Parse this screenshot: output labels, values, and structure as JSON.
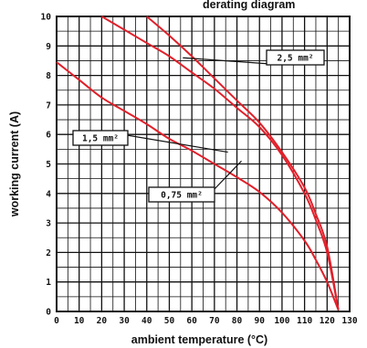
{
  "chart_data": {
    "type": "line",
    "title": "derating diagram",
    "xlabel": "ambient temperature (°C)",
    "ylabel": "working current (A)",
    "xlim": [
      0,
      130
    ],
    "ylim": [
      0,
      10
    ],
    "x_ticks": [
      0,
      10,
      20,
      30,
      40,
      50,
      60,
      70,
      80,
      90,
      100,
      110,
      120,
      130
    ],
    "y_ticks": [
      0,
      1,
      2,
      3,
      4,
      5,
      6,
      7,
      8,
      9,
      10
    ],
    "grid": true,
    "minor_grid_x": 5,
    "minor_grid_y": 0.5,
    "line_color": "#e0202a",
    "series": [
      {
        "name": "0,75 mm²",
        "points": [
          [
            0,
            8.45
          ],
          [
            10,
            7.85
          ],
          [
            20,
            7.25
          ],
          [
            30,
            6.8
          ],
          [
            40,
            6.35
          ],
          [
            50,
            5.85
          ],
          [
            60,
            5.45
          ],
          [
            70,
            5.0
          ],
          [
            80,
            4.55
          ],
          [
            90,
            4.05
          ],
          [
            100,
            3.35
          ],
          [
            110,
            2.4
          ],
          [
            115,
            1.75
          ],
          [
            120,
            1.0
          ],
          [
            125,
            0.05
          ]
        ]
      },
      {
        "name": "1,5 mm²",
        "points": [
          [
            20,
            10.0
          ],
          [
            30,
            9.55
          ],
          [
            40,
            9.1
          ],
          [
            50,
            8.65
          ],
          [
            60,
            8.1
          ],
          [
            70,
            7.55
          ],
          [
            80,
            6.9
          ],
          [
            90,
            6.25
          ],
          [
            100,
            5.3
          ],
          [
            110,
            4.0
          ],
          [
            115,
            3.1
          ],
          [
            120,
            2.0
          ],
          [
            125,
            0.05
          ]
        ]
      },
      {
        "name": "2,5 mm²",
        "points": [
          [
            40,
            10.0
          ],
          [
            50,
            9.35
          ],
          [
            60,
            8.65
          ],
          [
            70,
            7.9
          ],
          [
            80,
            7.15
          ],
          [
            90,
            6.4
          ],
          [
            100,
            5.4
          ],
          [
            110,
            4.2
          ],
          [
            115,
            3.3
          ],
          [
            120,
            2.2
          ],
          [
            125,
            0.05
          ]
        ]
      }
    ],
    "annotations": [
      {
        "label": "2,5 mm²",
        "target": [
          56,
          8.6
        ]
      },
      {
        "label": "1,5 mm²",
        "target": [
          76,
          5.4
        ]
      },
      {
        "label": "0,75 mm²",
        "target": [
          82,
          5.1
        ]
      }
    ]
  }
}
